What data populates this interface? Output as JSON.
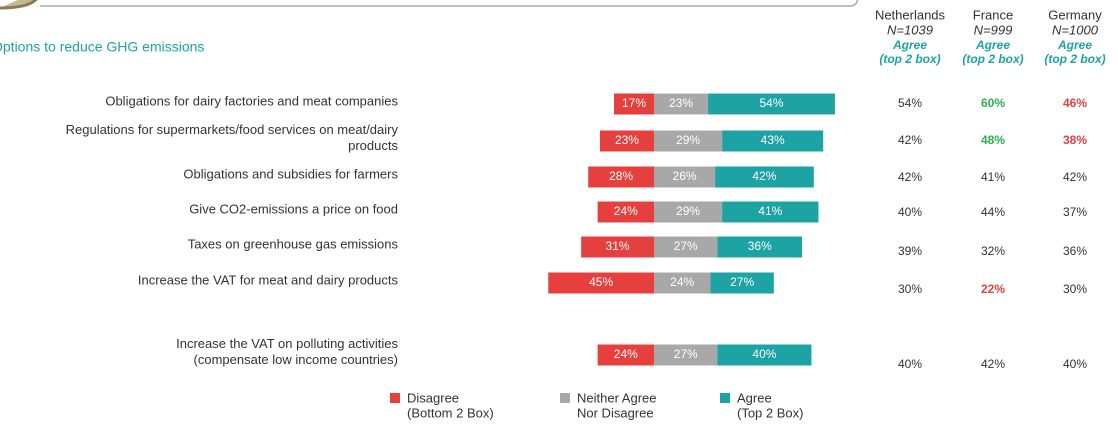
{
  "chart_data": {
    "type": "diverging_bar",
    "title": "Options to reduce GHG emissions",
    "categories": [
      "Obligations for dairy factories and meat companies",
      "Regulations for supermarkets/food services on meat/dairy\nproducts",
      "Obligations and subsidies for farmers",
      "Give  CO2-emissions a price on food",
      "Taxes on greenhouse gas emissions",
      "Increase the VAT for meat and dairy products",
      "Increase the VAT on polluting activities\n(compensate low income countries)"
    ],
    "series": [
      {
        "name": "Disagree\n(Bottom 2 Box)",
        "color": "#e5403e",
        "values": [
          17,
          23,
          28,
          24,
          31,
          45,
          24
        ],
        "value_labels": [
          "17%",
          "23%",
          "28%",
          "24%",
          "31%",
          "45%",
          "24%"
        ]
      },
      {
        "name": "Neither Agree\nNor Disagree",
        "color": "#a8a8a8",
        "values": [
          23,
          29,
          26,
          29,
          27,
          24,
          27
        ],
        "value_labels": [
          "23%",
          "29%",
          "26%",
          "29%",
          "27%",
          "24%",
          "27%"
        ]
      },
      {
        "name": "Agree\n(Top 2 Box)",
        "color": "#1da3a4",
        "values": [
          54,
          43,
          42,
          41,
          36,
          27,
          40
        ],
        "value_labels": [
          "54%",
          "43%",
          "42%",
          "41%",
          "36%",
          "27%",
          "40%"
        ]
      }
    ],
    "countries": [
      {
        "name": "Netherlands",
        "n": "N=1039",
        "measure": "Agree\n(top 2 box)",
        "values": [
          54,
          42,
          42,
          40,
          39,
          30,
          40
        ],
        "value_labels": [
          "54%",
          "42%",
          "42%",
          "40%",
          "39%",
          "30%",
          "40%"
        ],
        "colors": [
          "#333333",
          "#333333",
          "#333333",
          "#333333",
          "#333333",
          "#333333",
          "#333333"
        ]
      },
      {
        "name": "France",
        "n": "N=999",
        "measure": "Agree\n(top 2 box)",
        "values": [
          60,
          48,
          41,
          44,
          32,
          22,
          42
        ],
        "value_labels": [
          "60%",
          "48%",
          "41%",
          "44%",
          "32%",
          "22%",
          "42%"
        ],
        "colors": [
          "#2db04b",
          "#2db04b",
          "#333333",
          "#333333",
          "#333333",
          "#e5403e",
          "#333333"
        ]
      },
      {
        "name": "Germany",
        "n": "N=1000",
        "measure": "Agree\n(top 2 box)",
        "values": [
          46,
          38,
          42,
          37,
          36,
          30,
          40
        ],
        "value_labels": [
          "46%",
          "38%",
          "42%",
          "37%",
          "36%",
          "30%",
          "40%"
        ],
        "colors": [
          "#e5403e",
          "#e5403e",
          "#333333",
          "#333333",
          "#333333",
          "#333333",
          "#333333"
        ]
      }
    ],
    "measure_color": "#1da3a4"
  }
}
